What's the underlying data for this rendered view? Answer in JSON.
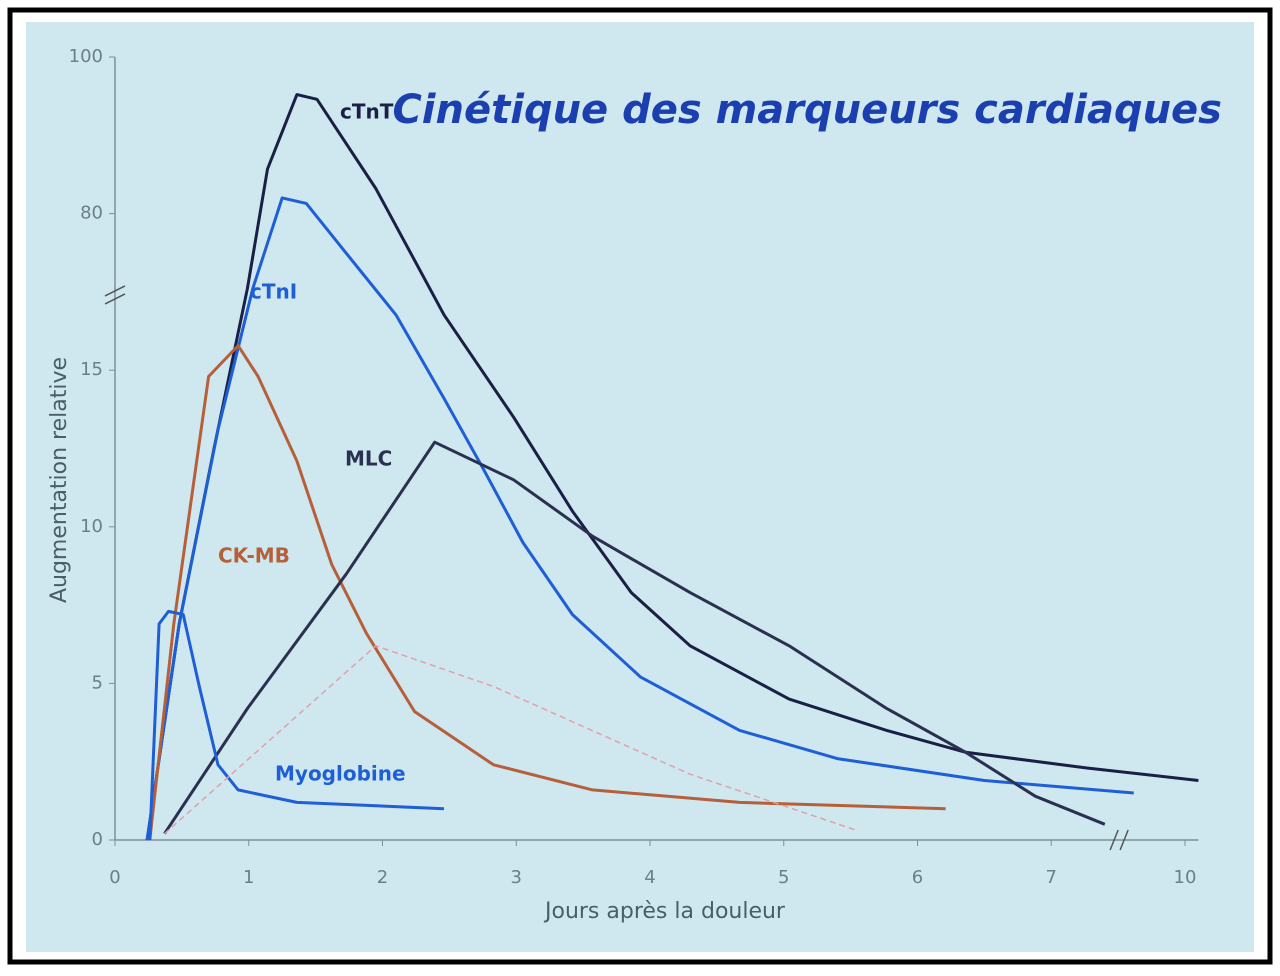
{
  "chart_data": {
    "type": "line",
    "title": "Cinétique des marqueurs cardiaques",
    "xlabel": "Jours après la douleur",
    "ylabel": "Augmentation relative",
    "xlim": [
      0,
      10.3
    ],
    "xticks": [
      0,
      1,
      2,
      3,
      4,
      5,
      6,
      7,
      10
    ],
    "ylim": [
      0,
      100
    ],
    "yticks": [
      0,
      5,
      10,
      15,
      80,
      100
    ],
    "x_axis_break": true,
    "y_axis_break": true,
    "series": [
      {
        "name": "cTnT",
        "color": "#1a1f45",
        "x": [
          0.24,
          0.48,
          0.74,
          0.99,
          1.14,
          1.36,
          1.51,
          1.95,
          2.46,
          2.98,
          3.42,
          3.86,
          4.3,
          5.04,
          5.77,
          6.36,
          7.8,
          10.3
        ],
        "values": [
          0,
          6.9,
          12.5,
          48.9,
          85.7,
          95.2,
          94.6,
          83.2,
          38,
          13.5,
          10.5,
          7.9,
          6.2,
          4.5,
          3.5,
          2.8,
          2.3,
          1.9
        ]
      },
      {
        "name": "cTnI",
        "color": "#1f5fd6",
        "x": [
          0.24,
          0.48,
          0.77,
          1.03,
          1.25,
          1.43,
          1.73,
          2.1,
          2.46,
          2.76,
          3.05,
          3.42,
          3.93,
          4.67,
          5.4,
          6.5,
          8.85
        ],
        "values": [
          0,
          6.9,
          13.1,
          48.9,
          82,
          81.3,
          63.5,
          38,
          14.1,
          11.8,
          9.5,
          7.2,
          5.2,
          3.5,
          2.6,
          1.9,
          1.5
        ]
      },
      {
        "name": "CK-MB",
        "color": "#b5603a",
        "x": [
          0.26,
          0.44,
          0.7,
          0.92,
          1.07,
          1.36,
          1.62,
          1.88,
          2.24,
          2.83,
          3.57,
          4.67,
          6.21
        ],
        "values": [
          0,
          6.9,
          14.8,
          25.2,
          14.8,
          12.1,
          8.8,
          6.6,
          4.1,
          2.4,
          1.6,
          1.2,
          1.0
        ]
      },
      {
        "name": "MLC",
        "color": "#2a3050",
        "x": [
          0.37,
          0.99,
          1.73,
          2.39,
          2.98,
          3.57,
          4.3,
          5.04,
          5.77,
          6.36,
          6.88,
          8.2
        ],
        "values": [
          0.2,
          4.2,
          8.5,
          12.7,
          11.5,
          9.7,
          7.9,
          6.2,
          4.2,
          2.8,
          1.4,
          0.5
        ]
      },
      {
        "name": "Myoglobine",
        "color": "#1f5fd6",
        "x": [
          0.26,
          0.33,
          0.4,
          0.51,
          0.63,
          0.77,
          0.92,
          1.36,
          2.46
        ],
        "values": [
          0,
          6.9,
          7.3,
          7.2,
          4.9,
          2.4,
          1.6,
          1.2,
          1.0
        ]
      },
      {
        "color": "#e2a0a8",
        "x": [
          0.37,
          1.95,
          2.83,
          4.3,
          5.55
        ],
        "values": [
          0.2,
          6.2,
          4.9,
          2.1,
          0.3
        ]
      }
    ]
  }
}
